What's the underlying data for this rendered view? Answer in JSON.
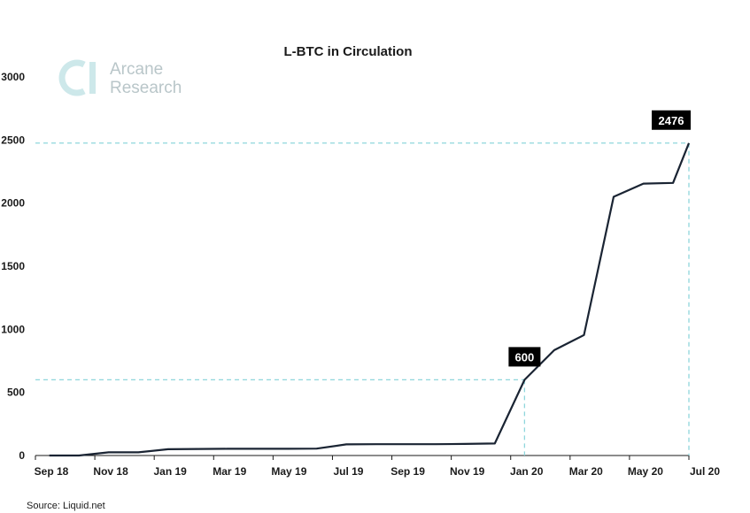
{
  "chart_data": {
    "type": "line",
    "title": "L-BTC in Circulation",
    "xlabel": "",
    "ylabel": "",
    "x_ticks": [
      "Sep 18",
      "Nov 18",
      "Jan 19",
      "Mar 19",
      "May 19",
      "Jul 19",
      "Sep 19",
      "Nov 19",
      "Jan 20",
      "Mar 20",
      "May 20",
      "Jul 20"
    ],
    "y_ticks": [
      0,
      500,
      1000,
      1500,
      2000,
      2500,
      3000
    ],
    "ylim": [
      0,
      3000
    ],
    "xlim": [
      "2018-09-01",
      "2020-07-01"
    ],
    "grid": false,
    "series": [
      {
        "points": [
          {
            "x": "2018-09-15",
            "y": 0
          },
          {
            "x": "2018-10-15",
            "y": 0
          },
          {
            "x": "2018-11-15",
            "y": 25
          },
          {
            "x": "2018-12-15",
            "y": 25
          },
          {
            "x": "2019-01-15",
            "y": 50
          },
          {
            "x": "2019-02-15",
            "y": 52
          },
          {
            "x": "2019-03-15",
            "y": 53
          },
          {
            "x": "2019-04-15",
            "y": 53
          },
          {
            "x": "2019-05-15",
            "y": 53
          },
          {
            "x": "2019-06-15",
            "y": 55
          },
          {
            "x": "2019-07-15",
            "y": 88
          },
          {
            "x": "2019-08-15",
            "y": 90
          },
          {
            "x": "2019-09-15",
            "y": 90
          },
          {
            "x": "2019-10-15",
            "y": 90
          },
          {
            "x": "2019-11-15",
            "y": 92
          },
          {
            "x": "2019-12-15",
            "y": 95
          },
          {
            "x": "2020-01-15",
            "y": 600
          },
          {
            "x": "2020-02-15",
            "y": 835
          },
          {
            "x": "2020-03-15",
            "y": 955
          },
          {
            "x": "2020-04-15",
            "y": 2050
          },
          {
            "x": "2020-05-15",
            "y": 2155
          },
          {
            "x": "2020-06-15",
            "y": 2160
          },
          {
            "x": "2020-07-01",
            "y": 2476
          }
        ]
      }
    ],
    "annotations": [
      {
        "label": "600",
        "x": "2020-01-15",
        "y": 600
      },
      {
        "label": "2476",
        "x": "2020-07-01",
        "y": 2476
      }
    ],
    "source": "Source: Liquid.net",
    "colors": {
      "line": "#1a2433",
      "guide": "#8fd6dc",
      "label_bg": "#000000",
      "logo": "#cde8ea"
    }
  },
  "logo": {
    "line1": "Arcane",
    "line2": "Research"
  }
}
